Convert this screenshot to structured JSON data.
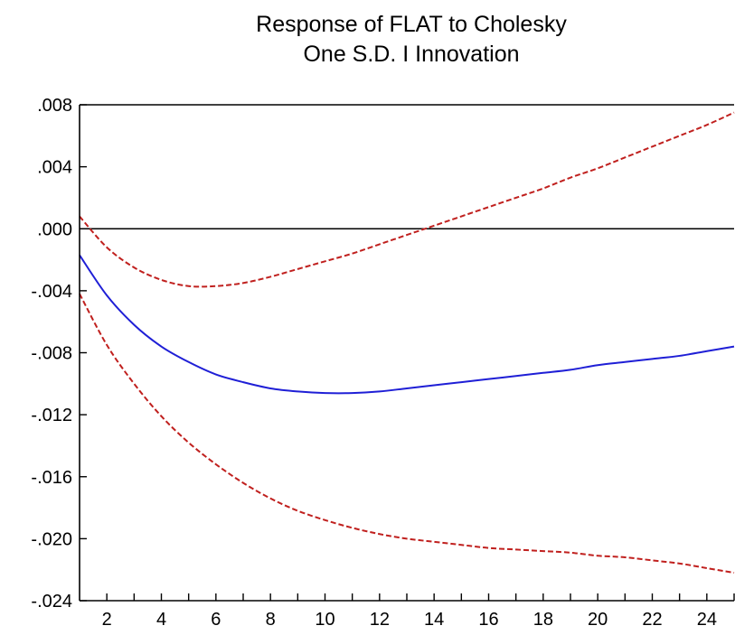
{
  "chart_data": {
    "type": "line",
    "title": [
      "Response of FLAT to Cholesky",
      "One S.D. I Innovation"
    ],
    "xlabel": "",
    "ylabel": "",
    "xlim": [
      1,
      25
    ],
    "ylim": [
      -0.024,
      0.008
    ],
    "x_ticks": [
      2,
      4,
      6,
      8,
      10,
      12,
      14,
      16,
      18,
      20,
      22,
      24
    ],
    "x_tick_labels": [
      "2",
      "4",
      "6",
      "8",
      "10",
      "12",
      "14",
      "16",
      "18",
      "20",
      "22",
      "24"
    ],
    "y_ticks": [
      0.008,
      0.004,
      0.0,
      -0.004,
      -0.008,
      -0.012,
      -0.016,
      -0.02,
      -0.024
    ],
    "y_tick_labels": [
      ".008",
      ".004",
      ".000",
      "-.004",
      "-.008",
      "-.012",
      "-.016",
      "-.020",
      "-.024"
    ],
    "zero_line": true,
    "legend": "none",
    "series": [
      {
        "role": "impulse-response",
        "style": "solid",
        "color": "#1f1fd6",
        "x": [
          1,
          2,
          3,
          4,
          5,
          6,
          7,
          8,
          9,
          10,
          11,
          12,
          13,
          14,
          15,
          16,
          17,
          18,
          19,
          20,
          21,
          22,
          23,
          24,
          25
        ],
        "values": [
          -0.0017,
          -0.0043,
          -0.0062,
          -0.0076,
          -0.0086,
          -0.0094,
          -0.0099,
          -0.0103,
          -0.0105,
          -0.0106,
          -0.0106,
          -0.0105,
          -0.0103,
          -0.0101,
          -0.0099,
          -0.0097,
          -0.0095,
          -0.0093,
          -0.0091,
          -0.0088,
          -0.0086,
          -0.0084,
          -0.0082,
          -0.0079,
          -0.0076
        ]
      },
      {
        "role": "upper-band",
        "style": "dashed",
        "color": "#c0201e",
        "x": [
          1,
          2,
          3,
          4,
          5,
          6,
          7,
          8,
          9,
          10,
          11,
          12,
          13,
          14,
          15,
          16,
          17,
          18,
          19,
          20,
          21,
          22,
          23,
          24,
          25
        ],
        "values": [
          0.0008,
          -0.0012,
          -0.0025,
          -0.0033,
          -0.0037,
          -0.0037,
          -0.0035,
          -0.0031,
          -0.0026,
          -0.0021,
          -0.0016,
          -0.001,
          -0.0004,
          0.0002,
          0.0008,
          0.0014,
          0.002,
          0.0026,
          0.0033,
          0.0039,
          0.0046,
          0.0053,
          0.006,
          0.0067,
          0.0075
        ]
      },
      {
        "role": "lower-band",
        "style": "dashed",
        "color": "#c0201e",
        "x": [
          1,
          2,
          3,
          4,
          5,
          6,
          7,
          8,
          9,
          10,
          11,
          12,
          13,
          14,
          15,
          16,
          17,
          18,
          19,
          20,
          21,
          22,
          23,
          24,
          25
        ],
        "values": [
          -0.0042,
          -0.0075,
          -0.01,
          -0.0121,
          -0.0138,
          -0.0152,
          -0.0164,
          -0.0174,
          -0.0182,
          -0.0188,
          -0.0193,
          -0.0197,
          -0.02,
          -0.0202,
          -0.0204,
          -0.0206,
          -0.0207,
          -0.0208,
          -0.0209,
          -0.0211,
          -0.0212,
          -0.0214,
          -0.0216,
          -0.0219,
          -0.0222
        ]
      }
    ]
  }
}
